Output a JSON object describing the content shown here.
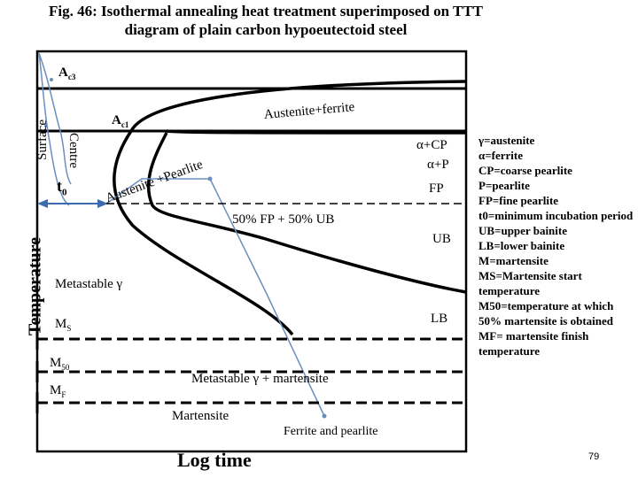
{
  "title": {
    "line1": "Fig. 46: Isothermal annealing  heat treatment superimposed on TTT",
    "line2": "diagram of plain carbon hypoeutectoid steel"
  },
  "axes": {
    "y_label": "Temperature",
    "x_label": "Log time"
  },
  "lines": {
    "ac3": "A",
    "ac3_sub": "c3",
    "ac1": "A",
    "ac1_sub": "c1",
    "ms": "M",
    "ms_sub": "S",
    "m50": "M",
    "m50_sub": "50",
    "mf": "M",
    "mf_sub": "F",
    "t0": "t",
    "t0_sub": "0"
  },
  "curve_labels": {
    "surface": "Surface",
    "centre": "Centre"
  },
  "regions": {
    "austenite_ferrite": "Austenite+ferrite",
    "austenite_pearlite": "Austenite +Pearlite",
    "alpha_cp": "α+CP",
    "alpha_p": "α+P",
    "fp": "FP",
    "fp_ub": "50% FP + 50% UB",
    "ub": "UB",
    "metastable_gamma": "Metastable γ",
    "lb": "LB",
    "metastable_gamma_martensite": "Metastable  γ + martensite",
    "martensite": "Martensite",
    "ferrite_pearlite": "Ferrite and pearlite"
  },
  "legend": [
    "γ=austenite",
    "α=ferrite",
    "CP=coarse pearlite",
    "P=pearlite",
    "FP=fine pearlite",
    "t0=minimum incubation period",
    "UB=upper bainite",
    "LB=lower bainite",
    "M=martensite",
    "MS=Martensite start temperature",
    "M50=temperature at which 50% martensite is obtained",
    "MF= martensite finish temperature"
  ],
  "page_number": "79",
  "colors": {
    "curve": "#000000",
    "cooling_curve": "#6a8fbf",
    "arrow": "#3b6cb0",
    "dashed": "#000000"
  }
}
